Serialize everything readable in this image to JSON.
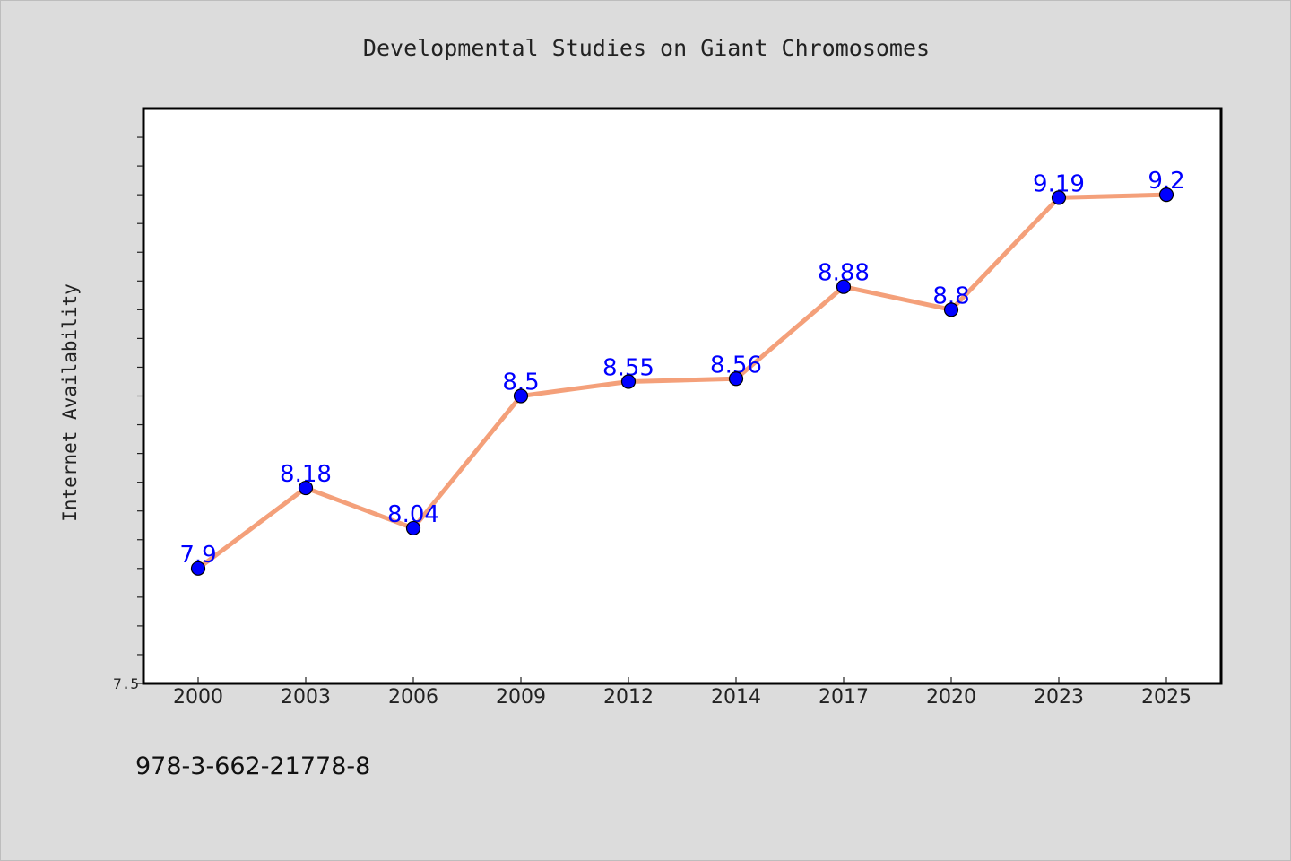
{
  "footer_text": "978-3-662-21778-8",
  "colors": {
    "background": "#dcdcdc",
    "plot_background": "#ffffff",
    "line": "#f4a07a",
    "marker": "#0000ff",
    "data_label": "#0000ff"
  },
  "chart_data": {
    "type": "line",
    "title": "Developmental Studies on Giant Chromosomes",
    "xlabel": "",
    "ylabel": "Internet Availability",
    "categories": [
      "2000",
      "2003",
      "2006",
      "2009",
      "2012",
      "2014",
      "2017",
      "2020",
      "2023",
      "2025"
    ],
    "series": [
      {
        "values": [
          7.9,
          8.18,
          8.04,
          8.5,
          8.55,
          8.56,
          8.88,
          8.8,
          9.19,
          9.2
        ],
        "labels": [
          "7.9",
          "8.18",
          "8.04",
          "8.5",
          "8.55",
          "8.56",
          "8.88",
          "8.8",
          "9.19",
          "9.2"
        ]
      }
    ],
    "ylim": [
      7.5,
      9.5
    ],
    "y_tick_labels": [
      "7.5"
    ],
    "y_minor_tick_step": 0.1,
    "grid": false,
    "legend": "none"
  }
}
